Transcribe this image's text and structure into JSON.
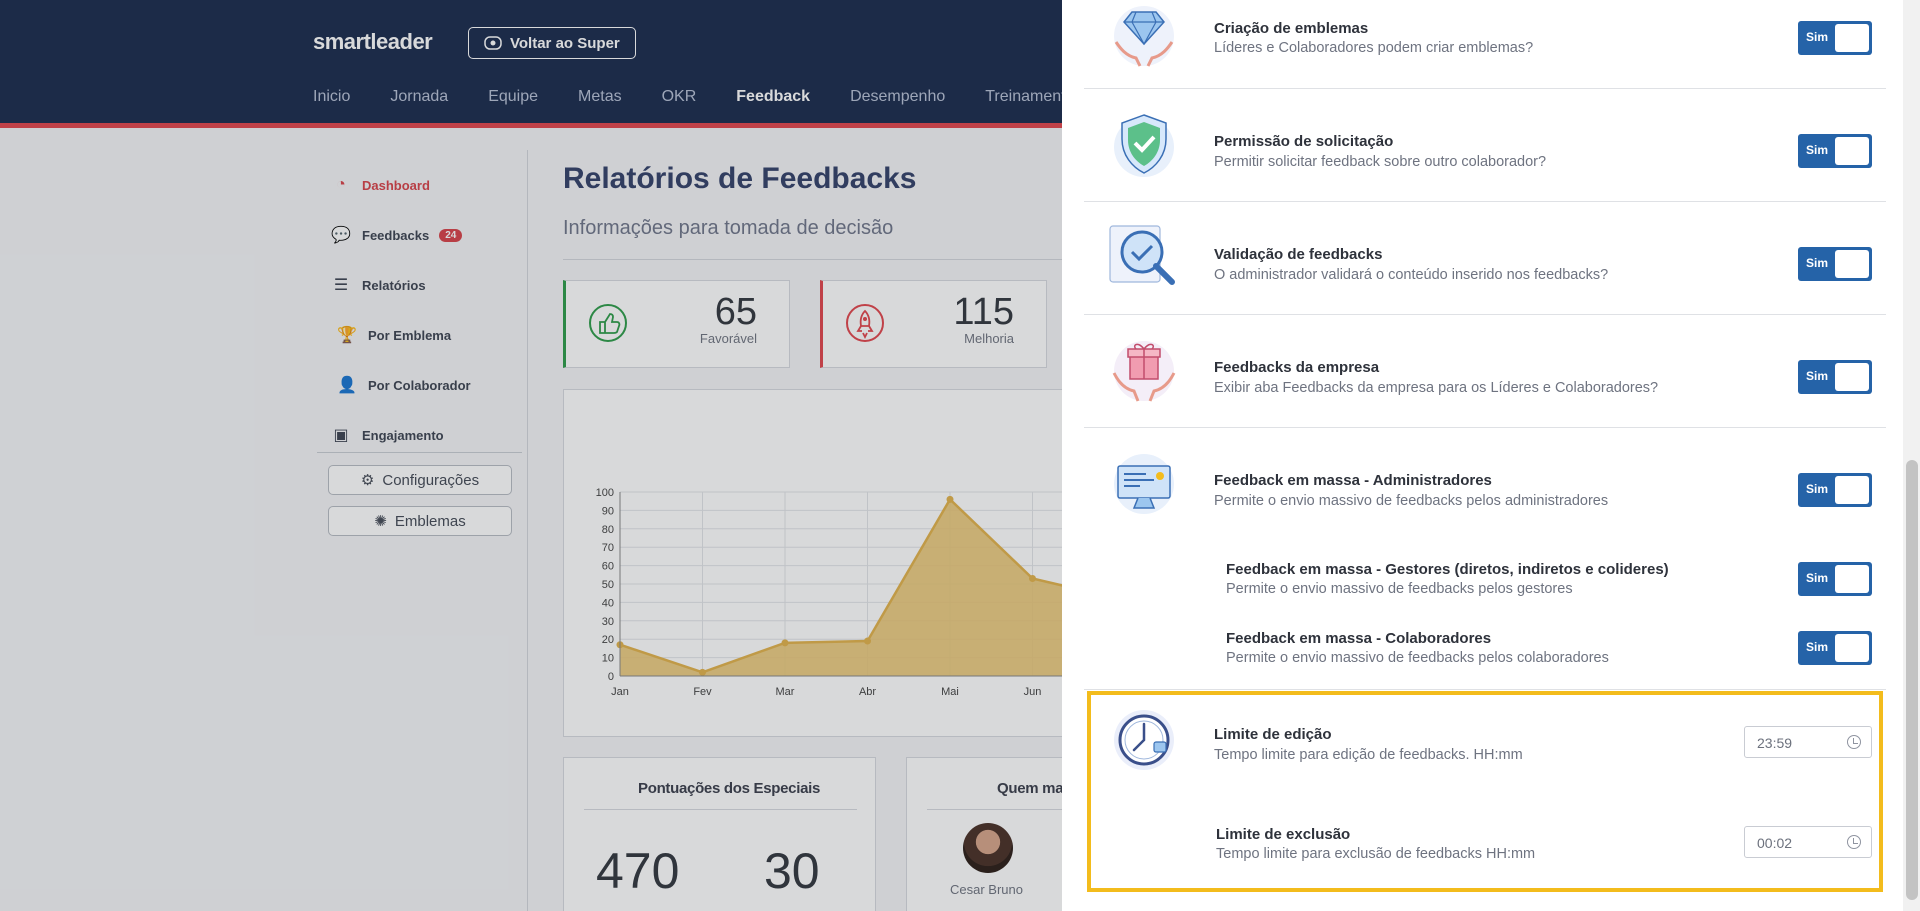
{
  "header": {
    "logo": "smartleader",
    "back_button": "Voltar ao Super",
    "nav": [
      "Inicio",
      "Jornada",
      "Equipe",
      "Metas",
      "OKR",
      "Feedback",
      "Desempenho",
      "Treinamento"
    ],
    "active_nav": "Feedback"
  },
  "sidebar": {
    "items": [
      {
        "label": "Dashboard",
        "icon": "pie-chart-icon"
      },
      {
        "label": "Feedbacks",
        "icon": "chat-icon",
        "badge": "24"
      },
      {
        "label": "Relatórios",
        "icon": "bar-list-icon"
      },
      {
        "label": "Por Emblema",
        "icon": "trophy-icon"
      },
      {
        "label": "Por Colaborador",
        "icon": "user-icon"
      },
      {
        "label": "Engajamento",
        "icon": "image-frame-icon"
      }
    ],
    "config_button": "Configurações",
    "emblems_button": "Emblemas"
  },
  "report": {
    "title": "Relatórios de Feedbacks",
    "subtitle": "Informações para tomada de decisão",
    "kpis": [
      {
        "value": "65",
        "label": "Favorável",
        "color": "#2e9d4a"
      },
      {
        "value": "115",
        "label": "Melhoria",
        "color": "#e2464d"
      }
    ],
    "card1_title": "Pontuações dos Especiais",
    "card1_values": [
      "470",
      "30"
    ],
    "card2_title": "Quem ma",
    "card2_person": "Cesar Bruno"
  },
  "chart_data": {
    "type": "area",
    "categories": [
      "Jan",
      "Fev",
      "Mar",
      "Abr",
      "Mai",
      "Jun"
    ],
    "values": [
      17,
      2,
      18,
      19,
      96,
      53
    ],
    "ylim": [
      0,
      100
    ],
    "yticks": [
      0,
      10,
      20,
      30,
      40,
      50,
      60,
      70,
      80,
      90,
      100
    ],
    "grid": true,
    "fill_color": "#e9c36d",
    "line_color": "#e2b24c"
  },
  "settings": {
    "yes_label": "Sim",
    "rows": [
      {
        "title": "Criação de emblemas",
        "desc": "Líderes e Colaboradores podem criar emblemas?",
        "icon": "diamond-hands-icon"
      },
      {
        "title": "Permissão de solicitação",
        "desc": "Permitir solicitar feedback sobre outro colaborador?",
        "icon": "shield-check-icon"
      },
      {
        "title": "Validação de feedbacks",
        "desc": "O administrador validará o conteúdo inserido nos feedbacks?",
        "icon": "magnifier-check-icon"
      },
      {
        "title": "Feedbacks da empresa",
        "desc": "Exibir aba Feedbacks da empresa para os Líderes e Colaboradores?",
        "icon": "gift-hands-icon"
      },
      {
        "title": "Feedback em massa - Administradores",
        "desc": "Permite o envio massivo de feedbacks pelos administradores",
        "icon": "computer-monitor-icon"
      },
      {
        "title": "Feedback em massa - Gestores (diretos, indiretos e colideres)",
        "desc": "Permite o envio massivo de feedbacks pelos gestores"
      },
      {
        "title": "Feedback em massa - Colaboradores",
        "desc": "Permite o envio massivo de feedbacks pelos colaboradores"
      }
    ],
    "limits": [
      {
        "title": "Limite de edição",
        "desc": "Tempo limite para edição de feedbacks. HH:mm",
        "value": "23:59",
        "icon": "clock-icon"
      },
      {
        "title": "Limite de exclusão",
        "desc": "Tempo limite para exclusão de feedbacks HH:mm",
        "value": "00:02"
      }
    ],
    "highlight_color": "#f3bc1c",
    "toggle_color": "#2563a8"
  }
}
